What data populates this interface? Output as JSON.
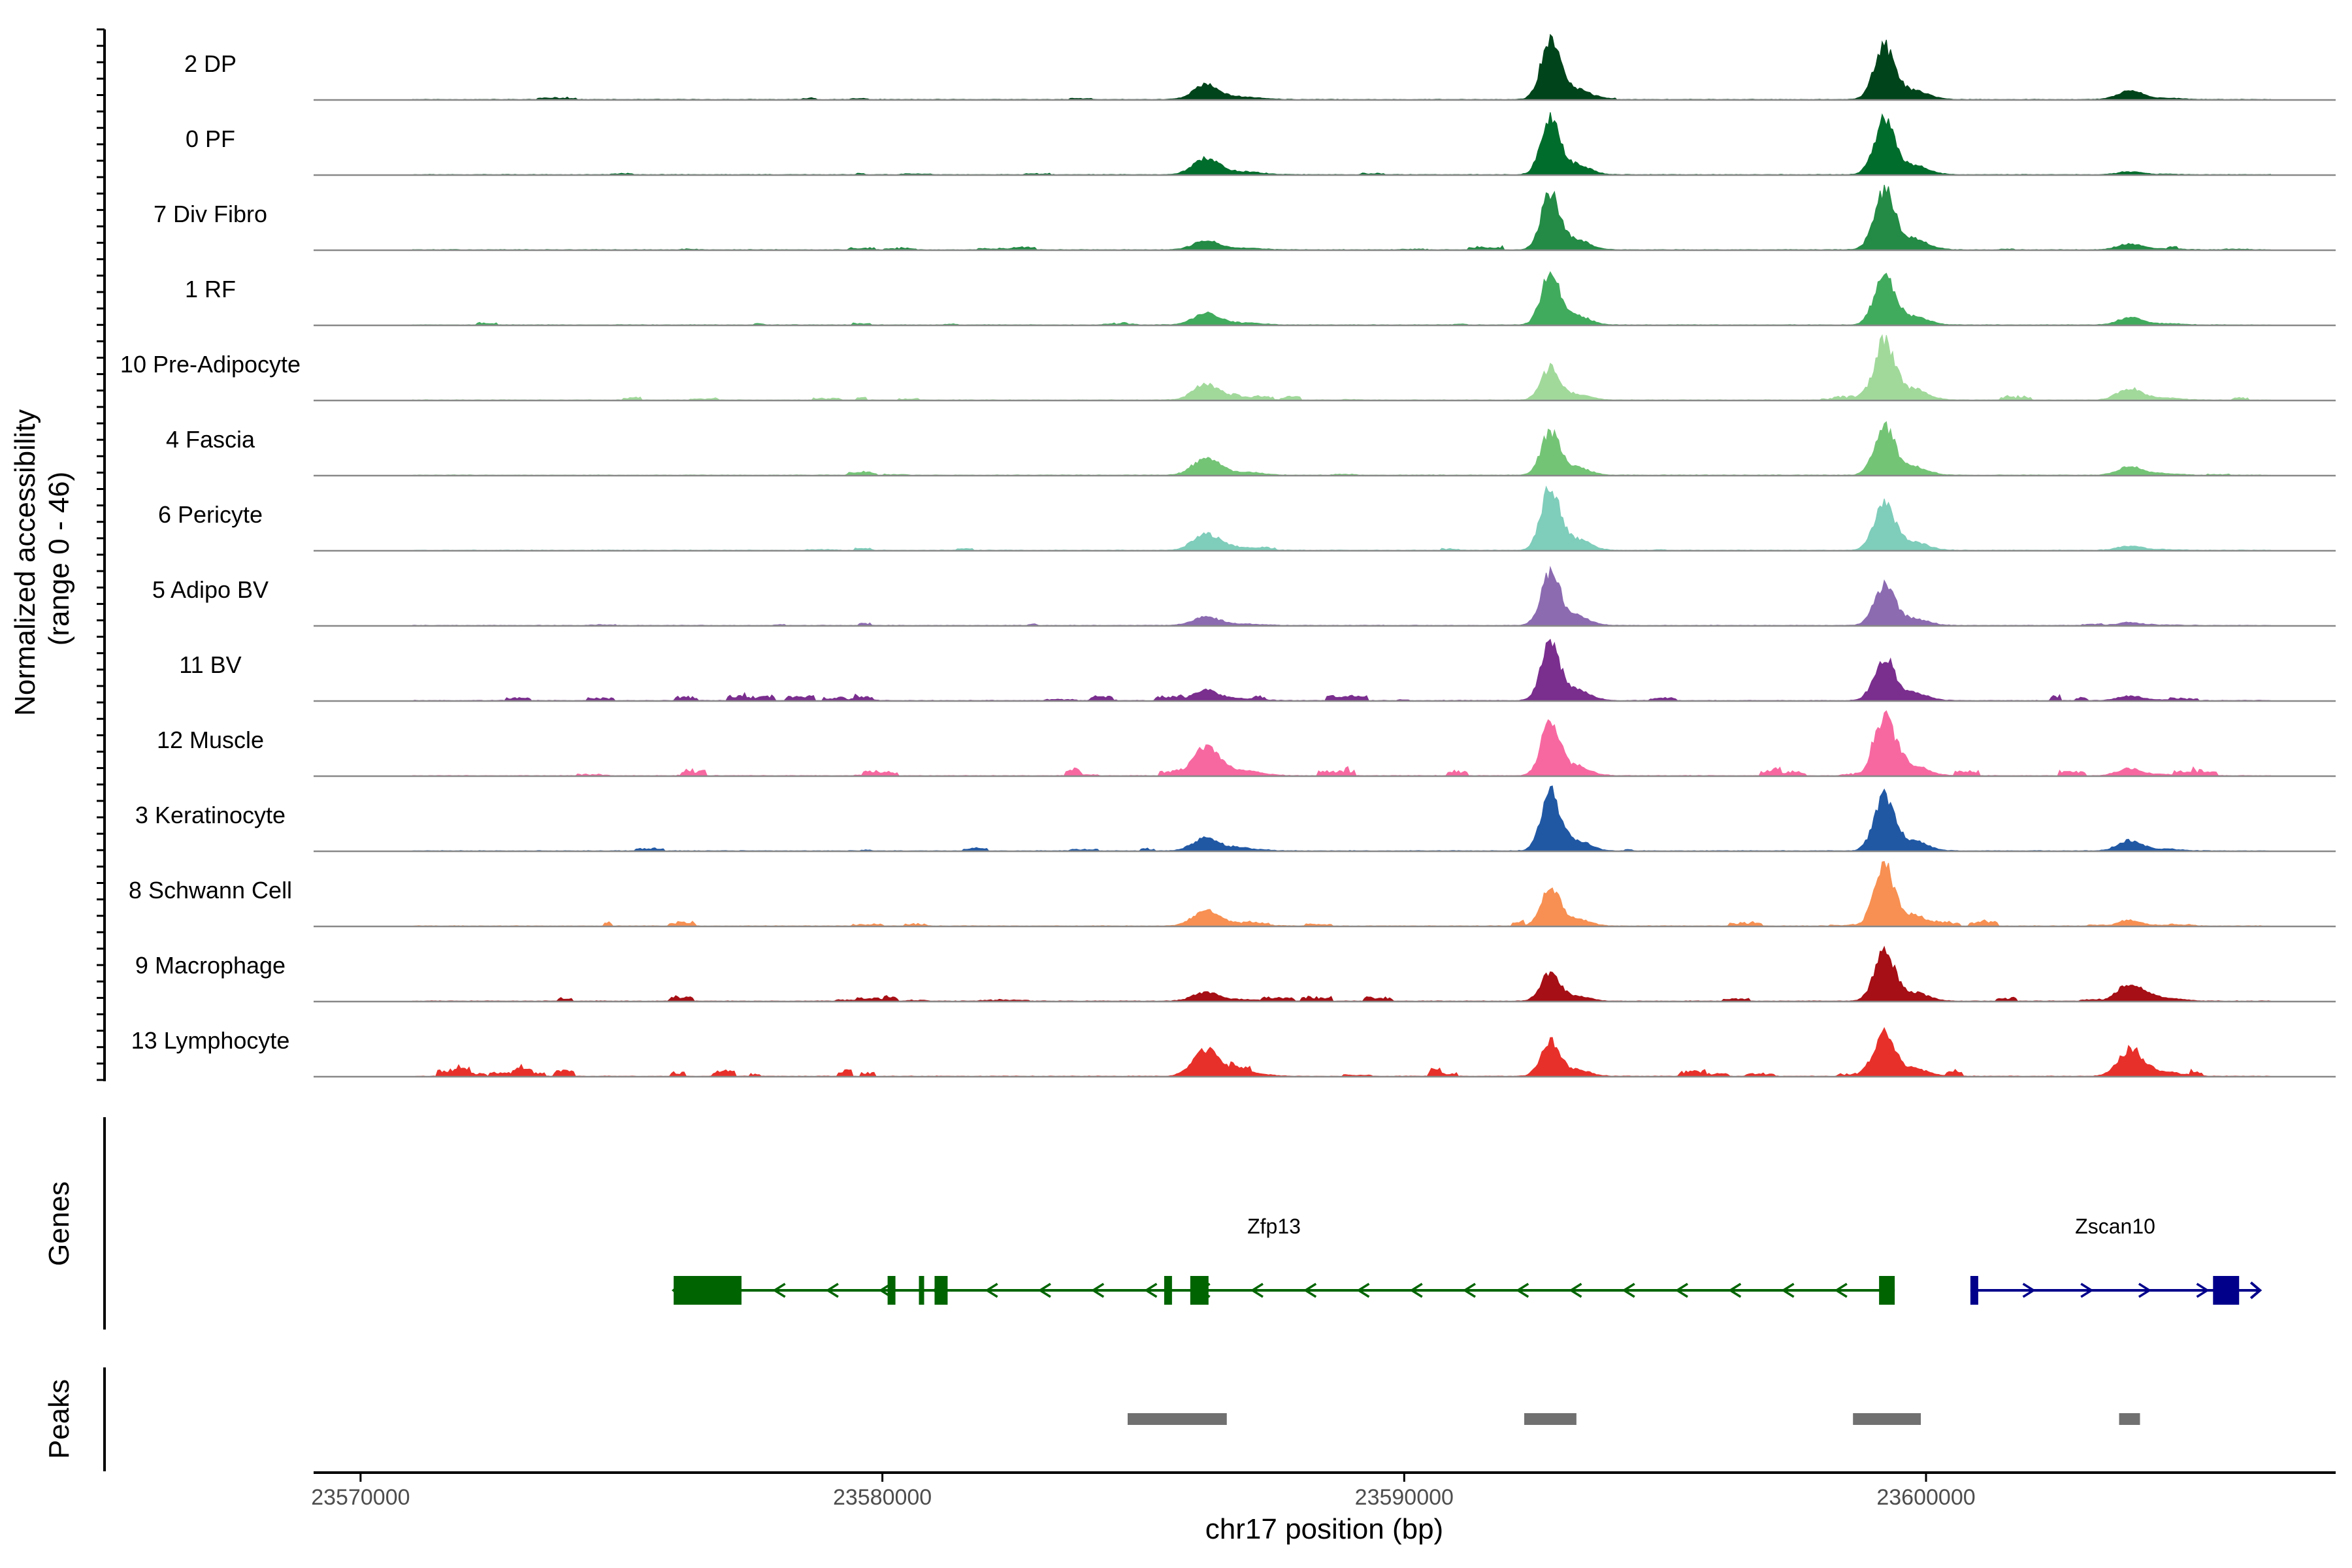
{
  "chart_data": {
    "type": "area",
    "title": "",
    "y_axis_label_line1": "Normalized accessibility",
    "y_axis_label_line2": "(range 0 - 46)",
    "y_range": [
      0,
      46
    ],
    "xlabel": "chr17 position (bp)",
    "xlim": [
      23569100,
      23607850
    ],
    "x_ticks": [
      23570000,
      23580000,
      23590000,
      23600000
    ],
    "x_tick_labels": [
      "23570000",
      "23580000",
      "23590000",
      "23600000"
    ],
    "peak_positions": [
      23586200,
      23592800,
      23599200,
      23603900
    ],
    "series": [
      {
        "name": "2 DP",
        "color": "#00441b",
        "peak_heights": [
          10,
          42,
          36,
          6
        ],
        "noise": 0.05,
        "seed": 11
      },
      {
        "name": "0 PF",
        "color": "#006d2c",
        "peak_heights": [
          11,
          39,
          37,
          2
        ],
        "noise": 0.04,
        "seed": 12
      },
      {
        "name": "7 Div Fibro",
        "color": "#238b45",
        "peak_heights": [
          6,
          39,
          41,
          4
        ],
        "noise": 0.1,
        "seed": 13
      },
      {
        "name": "1 RF",
        "color": "#41ab5d",
        "peak_heights": [
          8,
          35,
          33,
          5
        ],
        "noise": 0.06,
        "seed": 14
      },
      {
        "name": "10 Pre-Adipocyte",
        "color": "#a1d99b",
        "peak_heights": [
          11,
          22,
          40,
          8
        ],
        "noise": 0.12,
        "seed": 15
      },
      {
        "name": "4 Fascia",
        "color": "#74c476",
        "peak_heights": [
          12,
          30,
          33,
          6
        ],
        "noise": 0.05,
        "seed": 16
      },
      {
        "name": "6 Pericyte",
        "color": "#7fcdbb",
        "peak_heights": [
          11,
          44,
          33,
          3
        ],
        "noise": 0.06,
        "seed": 17
      },
      {
        "name": "5 Adipo BV",
        "color": "#8c6bb1",
        "peak_heights": [
          6,
          37,
          27,
          2
        ],
        "noise": 0.05,
        "seed": 18
      },
      {
        "name": "11 BV",
        "color": "#7a2e8e",
        "peak_heights": [
          7,
          40,
          30,
          3
        ],
        "noise": 0.18,
        "seed": 19
      },
      {
        "name": "12 Muscle",
        "color": "#f768a1",
        "peak_heights": [
          20,
          38,
          38,
          5
        ],
        "noise": 0.18,
        "seed": 20
      },
      {
        "name": "3 Keratinocyte",
        "color": "#2158a4",
        "peak_heights": [
          9,
          41,
          37,
          7
        ],
        "noise": 0.07,
        "seed": 21
      },
      {
        "name": "8 Schwann Cell",
        "color": "#f79052",
        "peak_heights": [
          11,
          27,
          40,
          3
        ],
        "noise": 0.14,
        "seed": 22
      },
      {
        "name": "9 Macrophage",
        "color": "#a50f15",
        "peak_heights": [
          6,
          20,
          33,
          12
        ],
        "noise": 0.16,
        "seed": 23
      },
      {
        "name": "13 Lymphocyte",
        "color": "#e8302a",
        "peak_heights": [
          18,
          25,
          30,
          17
        ],
        "noise": 0.22,
        "seed": 24
      }
    ],
    "genes_panel_label": "Genes",
    "peaks_panel_label": "Peaks",
    "genes": [
      {
        "name": "Zfp13",
        "strand": "-",
        "color": "#006400",
        "start": 23576000,
        "end": 23599400,
        "exons": [
          [
            23576000,
            23577300
          ],
          [
            23580100,
            23580250
          ],
          [
            23580700,
            23580800
          ],
          [
            23581000,
            23581250
          ],
          [
            23585400,
            23585550
          ],
          [
            23585900,
            23586250
          ],
          [
            23599100,
            23599400
          ]
        ]
      },
      {
        "name": "Zscan10",
        "strand": "+",
        "color": "#00008b",
        "start": 23600850,
        "end": 23606400,
        "exons": [
          [
            23600850,
            23601000
          ],
          [
            23605500,
            23606000
          ]
        ]
      }
    ],
    "peaks": [
      [
        23584700,
        23586600
      ],
      [
        23592300,
        23593300
      ],
      [
        23598600,
        23599900
      ],
      [
        23603700,
        23604100
      ]
    ]
  }
}
